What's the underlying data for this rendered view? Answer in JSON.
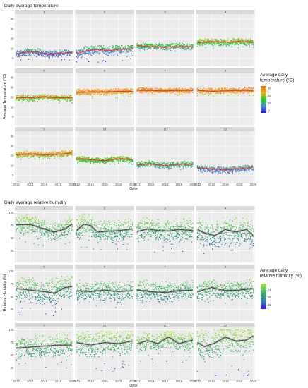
{
  "chart_data": [
    {
      "type": "scatter",
      "title": "Daily average temperature",
      "xlabel": "Date",
      "ylabel": "Average Temperature (°C)",
      "xlim": [
        2012,
        2020
      ],
      "ylim": [
        -8,
        45
      ],
      "x_ticks": [
        "2012",
        "2014",
        "2016",
        "2018",
        "2020"
      ],
      "y_ticks": [
        0,
        10,
        20,
        30,
        40
      ],
      "facets": [
        "1",
        "2",
        "3",
        "4",
        "5",
        "6",
        "7",
        "8",
        "9",
        "10",
        "11",
        "12"
      ],
      "legend": {
        "title": [
          "Average daily",
          "temperature (°C)"
        ],
        "placement": "right",
        "ticks": [
          30,
          20,
          10,
          0
        ],
        "range": [
          -3,
          33
        ],
        "colors": [
          "#1b1bd8",
          "#4a8ad0",
          "#22d022",
          "#e8b013",
          "#e87510"
        ]
      },
      "trend_color": "#d93a2b",
      "panel_background": "#ebebeb",
      "grid": true,
      "series": [
        {
          "name": "1",
          "trend": [
            [
              2012,
              4.5
            ],
            [
              2013.5,
              6.5
            ],
            [
              2015,
              6.5
            ],
            [
              2016.5,
              4.5
            ],
            [
              2018,
              5
            ],
            [
              2020,
              6
            ]
          ],
          "range": [
            -2,
            10
          ]
        },
        {
          "name": "2",
          "trend": [
            [
              2012,
              5
            ],
            [
              2013.5,
              8
            ],
            [
              2015,
              9
            ],
            [
              2016.5,
              8
            ],
            [
              2018,
              9
            ],
            [
              2020,
              10
            ]
          ],
          "range": [
            -4,
            13
          ]
        },
        {
          "name": "3",
          "trend": [
            [
              2012,
              13
            ],
            [
              2014,
              12
            ],
            [
              2016,
              11.5
            ],
            [
              2018,
              12
            ],
            [
              2020,
              12
            ]
          ],
          "range": [
            7,
            18
          ]
        },
        {
          "name": "4",
          "trend": [
            [
              2012,
              16
            ],
            [
              2014,
              17
            ],
            [
              2016,
              16.5
            ],
            [
              2018,
              17
            ],
            [
              2020,
              16.5
            ]
          ],
          "range": [
            10,
            22
          ]
        },
        {
          "name": "5",
          "trend": [
            [
              2012,
              19.5
            ],
            [
              2014,
              19.5
            ],
            [
              2016,
              20.5
            ],
            [
              2018,
              19.5
            ],
            [
              2020,
              19.5
            ]
          ],
          "range": [
            14,
            24
          ]
        },
        {
          "name": "6",
          "trend": [
            [
              2012,
              25
            ],
            [
              2014,
              25.5
            ],
            [
              2016,
              25.5
            ],
            [
              2018,
              26
            ],
            [
              2020,
              26
            ]
          ],
          "range": [
            19,
            29
          ]
        },
        {
          "name": "7",
          "trend": [
            [
              2012,
              27
            ],
            [
              2014,
              27
            ],
            [
              2016,
              26.5
            ],
            [
              2018,
              27
            ],
            [
              2020,
              27
            ]
          ],
          "range": [
            22,
            31
          ]
        },
        {
          "name": "8",
          "trend": [
            [
              2012,
              27
            ],
            [
              2014,
              26
            ],
            [
              2016,
              26.5
            ],
            [
              2018,
              27
            ],
            [
              2020,
              27
            ]
          ],
          "range": [
            21,
            31
          ]
        },
        {
          "name": "9",
          "trend": [
            [
              2012,
              21
            ],
            [
              2014,
              22
            ],
            [
              2016,
              21
            ],
            [
              2018,
              21.5
            ],
            [
              2020,
              23
            ]
          ],
          "range": [
            16,
            27
          ]
        },
        {
          "name": "10",
          "trend": [
            [
              2012,
              17
            ],
            [
              2014,
              16
            ],
            [
              2016,
              15
            ],
            [
              2018,
              17
            ],
            [
              2020,
              16.5
            ]
          ],
          "range": [
            11,
            21
          ]
        },
        {
          "name": "11",
          "trend": [
            [
              2012,
              11
            ],
            [
              2014,
              12
            ],
            [
              2016,
              10
            ],
            [
              2018,
              11.5
            ],
            [
              2020,
              11.5
            ]
          ],
          "range": [
            6,
            17
          ]
        },
        {
          "name": "12",
          "trend": [
            [
              2012,
              8
            ],
            [
              2014,
              6.5
            ],
            [
              2016,
              6
            ],
            [
              2018,
              7
            ],
            [
              2020,
              8.5
            ]
          ],
          "range": [
            2,
            13
          ]
        }
      ]
    },
    {
      "type": "scatter",
      "title": "Daily average relative humidity",
      "xlabel": "Date",
      "ylabel": "Relative Humidity (%)",
      "xlim": [
        2012,
        2020
      ],
      "ylim": [
        2,
        105
      ],
      "x_ticks": [
        "2012",
        "2014",
        "2016",
        "2018",
        "2020"
      ],
      "y_ticks": [
        25,
        50,
        75,
        100
      ],
      "facets": [
        "1",
        "2",
        "3",
        "4",
        "5",
        "6",
        "7",
        "8",
        "9",
        "10",
        "11",
        "12"
      ],
      "legend": {
        "title": [
          "Average daily",
          "relative humidity (%)"
        ],
        "placement": "right",
        "ticks": [
          75,
          50,
          25
        ],
        "range": [
          12,
          95
        ],
        "colors": [
          "#3d10e0",
          "#3a6fc4",
          "#2aa07a",
          "#55c85a",
          "#a6e12a"
        ]
      },
      "trend_color": "#3d3d3d",
      "panel_background": "#ebebeb",
      "grid": true,
      "series": [
        {
          "name": "1",
          "trend": [
            [
              2012,
              76
            ],
            [
              2014,
              77
            ],
            [
              2016,
              68
            ],
            [
              2017.5,
              62
            ],
            [
              2019,
              68
            ],
            [
              2020,
              78
            ]
          ],
          "range": [
            35,
            97
          ]
        },
        {
          "name": "2",
          "trend": [
            [
              2012,
              65
            ],
            [
              2013,
              77
            ],
            [
              2014,
              75
            ],
            [
              2015,
              62
            ],
            [
              2016,
              63
            ],
            [
              2018,
              65
            ],
            [
              2020,
              68
            ]
          ],
          "range": [
            25,
            97
          ]
        },
        {
          "name": "3",
          "trend": [
            [
              2012,
              63
            ],
            [
              2013.5,
              68
            ],
            [
              2015,
              65
            ],
            [
              2016.5,
              64
            ],
            [
              2018,
              67
            ],
            [
              2020,
              65
            ]
          ],
          "range": [
            22,
            97
          ]
        },
        {
          "name": "4",
          "trend": [
            [
              2012,
              67
            ],
            [
              2013,
              60
            ],
            [
              2014.5,
              55
            ],
            [
              2016,
              67
            ],
            [
              2017.5,
              62
            ],
            [
              2019,
              67
            ],
            [
              2020,
              55
            ]
          ],
          "range": [
            8,
            95
          ]
        },
        {
          "name": "5",
          "trend": [
            [
              2012,
              66
            ],
            [
              2014,
              63
            ],
            [
              2016,
              60
            ],
            [
              2017.5,
              57
            ],
            [
              2019,
              68
            ],
            [
              2020,
              70
            ]
          ],
          "range": [
            12,
            97
          ]
        },
        {
          "name": "6",
          "trend": [
            [
              2012,
              62
            ],
            [
              2014,
              60
            ],
            [
              2016,
              63
            ],
            [
              2018,
              60
            ],
            [
              2020,
              62
            ]
          ],
          "range": [
            28,
            97
          ]
        },
        {
          "name": "7",
          "trend": [
            [
              2012,
              63
            ],
            [
              2014,
              60
            ],
            [
              2016,
              58
            ],
            [
              2018,
              62
            ],
            [
              2020,
              63
            ]
          ],
          "range": [
            30,
            97
          ]
        },
        {
          "name": "8",
          "trend": [
            [
              2012,
              60
            ],
            [
              2014,
              68
            ],
            [
              2016,
              62
            ],
            [
              2018,
              63
            ],
            [
              2020,
              66
            ]
          ],
          "range": [
            35,
            97
          ]
        },
        {
          "name": "9",
          "trend": [
            [
              2012,
              64
            ],
            [
              2014,
              66
            ],
            [
              2016,
              68
            ],
            [
              2018,
              70
            ],
            [
              2020,
              70
            ]
          ],
          "range": [
            22,
            97
          ]
        },
        {
          "name": "10",
          "trend": [
            [
              2012,
              75
            ],
            [
              2014,
              70
            ],
            [
              2016,
              75
            ],
            [
              2018,
              73
            ],
            [
              2020,
              78
            ]
          ],
          "range": [
            12,
            97
          ]
        },
        {
          "name": "11",
          "trend": [
            [
              2012,
              72
            ],
            [
              2013.5,
              79
            ],
            [
              2015,
              73
            ],
            [
              2016.5,
              86
            ],
            [
              2018,
              73
            ],
            [
              2020,
              80
            ]
          ],
          "range": [
            35,
            97
          ]
        },
        {
          "name": "12",
          "trend": [
            [
              2012,
              75
            ],
            [
              2013,
              67
            ],
            [
              2014.5,
              74
            ],
            [
              2016,
              86
            ],
            [
              2017.5,
              78
            ],
            [
              2019,
              80
            ],
            [
              2020,
              88
            ]
          ],
          "range": [
            5,
            100
          ]
        }
      ]
    }
  ]
}
